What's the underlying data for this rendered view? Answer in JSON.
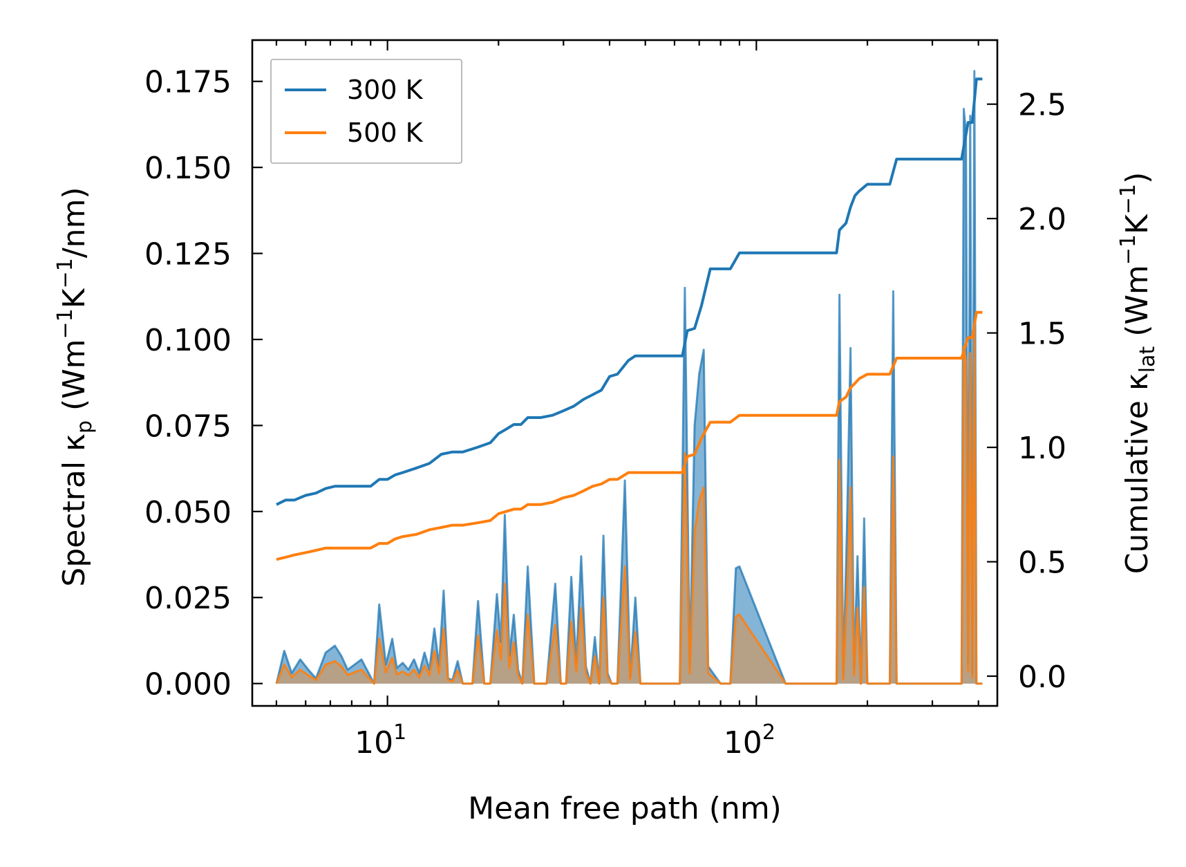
{
  "chart_data": {
    "type": "line",
    "title": "",
    "xlabel": "Mean free path (nm)",
    "ylabel_left": {
      "prefix": "Spectral κ",
      "sub": "p",
      "unit_open": " (Wm",
      "exp1": "−1",
      "mid": "K",
      "exp2": "−1",
      "unit_close": "/nm)"
    },
    "ylabel_right": {
      "prefix": "Cumulative κ",
      "sub": "lat",
      "unit_open": " (Wm",
      "exp1": "−1",
      "mid": "K",
      "exp2": "−1",
      "unit_close": ")"
    },
    "xscale": "log",
    "xlim": [
      4.3,
      450
    ],
    "ylim_left": [
      -0.0065,
      0.187
    ],
    "ylim_right": [
      -0.13,
      2.78
    ],
    "x_ticks": [
      {
        "value": 10,
        "base": "10",
        "exp": "1"
      },
      {
        "value": 100,
        "base": "10",
        "exp": "2"
      }
    ],
    "y_ticks_left": [
      "0.000",
      "0.025",
      "0.050",
      "0.075",
      "0.100",
      "0.125",
      "0.150",
      "0.175"
    ],
    "y_ticks_right": [
      "0.0",
      "0.5",
      "1.0",
      "1.5",
      "2.0",
      "2.5"
    ],
    "legend": {
      "position": "top-left",
      "entries": [
        "300 K",
        "500 K"
      ]
    },
    "colors": {
      "300K": "#1f77b4",
      "500K": "#ff7f0e",
      "fill300": "#1f77b4",
      "fill500": "#c79a6b"
    },
    "series": [
      {
        "name": "300 K",
        "axis": "right",
        "kind": "cumulative",
        "x": [
          5,
          5.3,
          5.6,
          6,
          6.4,
          6.8,
          7.2,
          7.6,
          8.2,
          9,
          9.5,
          10,
          10.5,
          11,
          12,
          13,
          14,
          15,
          16,
          17.5,
          19,
          20,
          21,
          22,
          23,
          24,
          26,
          28,
          30,
          32,
          34,
          36,
          38,
          40,
          42,
          45,
          47,
          50,
          55,
          60,
          63,
          65,
          68,
          71,
          75,
          80,
          85,
          90,
          120,
          165,
          168,
          175,
          180,
          185,
          190,
          200,
          230,
          240,
          300,
          360,
          375,
          385,
          395,
          410
        ],
        "values": [
          0.75,
          0.77,
          0.77,
          0.79,
          0.8,
          0.82,
          0.83,
          0.83,
          0.83,
          0.83,
          0.86,
          0.86,
          0.88,
          0.89,
          0.91,
          0.93,
          0.97,
          0.98,
          0.98,
          1.0,
          1.02,
          1.06,
          1.08,
          1.1,
          1.1,
          1.13,
          1.13,
          1.14,
          1.16,
          1.18,
          1.21,
          1.23,
          1.25,
          1.31,
          1.32,
          1.38,
          1.4,
          1.4,
          1.4,
          1.4,
          1.4,
          1.51,
          1.52,
          1.62,
          1.78,
          1.78,
          1.78,
          1.85,
          1.85,
          1.85,
          1.95,
          1.98,
          2.05,
          2.1,
          2.12,
          2.15,
          2.15,
          2.26,
          2.26,
          2.26,
          2.42,
          2.42,
          2.61,
          2.61
        ]
      },
      {
        "name": "500 K",
        "axis": "right",
        "kind": "cumulative",
        "x": [
          5,
          5.3,
          5.6,
          6,
          6.4,
          6.8,
          7.2,
          7.6,
          8.2,
          9,
          9.5,
          10,
          10.5,
          11,
          12,
          13,
          14,
          15,
          16,
          17.5,
          19,
          20,
          21,
          22,
          23,
          24,
          26,
          28,
          30,
          32,
          34,
          36,
          38,
          40,
          42,
          45,
          47,
          50,
          55,
          60,
          63,
          65,
          68,
          71,
          75,
          80,
          85,
          90,
          120,
          165,
          168,
          175,
          180,
          185,
          190,
          200,
          230,
          240,
          300,
          360,
          375,
          385,
          395,
          410
        ],
        "values": [
          0.51,
          0.52,
          0.53,
          0.54,
          0.55,
          0.56,
          0.56,
          0.56,
          0.56,
          0.56,
          0.58,
          0.58,
          0.6,
          0.61,
          0.62,
          0.64,
          0.65,
          0.66,
          0.66,
          0.67,
          0.68,
          0.71,
          0.72,
          0.73,
          0.73,
          0.75,
          0.75,
          0.76,
          0.78,
          0.79,
          0.81,
          0.83,
          0.84,
          0.86,
          0.86,
          0.89,
          0.89,
          0.89,
          0.89,
          0.89,
          0.89,
          0.96,
          0.97,
          1.04,
          1.11,
          1.11,
          1.11,
          1.14,
          1.14,
          1.14,
          1.2,
          1.22,
          1.26,
          1.28,
          1.3,
          1.32,
          1.32,
          1.39,
          1.39,
          1.39,
          1.48,
          1.48,
          1.59,
          1.59
        ]
      },
      {
        "name": "300 K",
        "axis": "left",
        "kind": "spectral",
        "x": [
          5,
          5.25,
          5.5,
          5.8,
          6.1,
          6.4,
          6.8,
          7.2,
          7.5,
          7.8,
          8.5,
          9.2,
          9.5,
          9.9,
          10.3,
          10.6,
          11,
          11.4,
          11.8,
          12.2,
          12.6,
          13,
          13.4,
          13.8,
          14.2,
          14.6,
          15,
          15.5,
          16,
          17,
          17.6,
          18.3,
          19,
          19.8,
          20.3,
          20.8,
          21.4,
          22,
          22.6,
          23.2,
          24,
          25,
          27,
          28.5,
          29.5,
          30.5,
          31.5,
          32.5,
          33.5,
          34.5,
          35.5,
          36.5,
          37.5,
          38.5,
          39.5,
          40.5,
          42,
          44,
          45.5,
          47,
          48.5,
          50,
          55,
          62,
          64,
          66,
          68,
          70,
          72,
          74,
          80,
          83,
          85,
          88,
          90,
          120,
          160,
          165,
          168,
          172,
          176,
          180,
          184,
          188,
          192,
          196,
          200,
          225,
          230,
          235,
          240,
          300,
          350,
          360,
          365,
          370,
          375,
          380,
          385,
          390,
          395,
          400,
          410
        ],
        "values": [
          0,
          0.0095,
          0.003,
          0.007,
          0.004,
          0.0015,
          0.009,
          0.011,
          0.008,
          0.004,
          0.007,
          0.0,
          0.023,
          0.0055,
          0.013,
          0.0045,
          0.006,
          0.004,
          0.007,
          0.003,
          0.009,
          0.004,
          0.016,
          0.005,
          0.027,
          0.0015,
          0.001,
          0.0065,
          0.0,
          0.0,
          0.024,
          0.0,
          0.0,
          0.026,
          0.012,
          0.049,
          0.008,
          0.02,
          0.004,
          0.0,
          0.034,
          0.0,
          0.0,
          0.029,
          0.0,
          0.0,
          0.031,
          0.006,
          0.037,
          0.005,
          0.0,
          0.0135,
          0.0,
          0.043,
          0.003,
          0.0,
          0.0,
          0.059,
          0.002,
          0.025,
          0.0,
          0.0,
          0.0,
          0.0,
          0.115,
          0.005,
          0.075,
          0.09,
          0.097,
          0.005,
          0.0,
          0.0,
          0.0,
          0.0335,
          0.034,
          0.0,
          0.0,
          0.0,
          0.113,
          0.002,
          0.045,
          0.0975,
          0.004,
          0.037,
          0.0,
          0.048,
          0.0,
          0.0,
          0.0,
          0.114,
          0.0,
          0.0,
          0.0,
          0.0,
          0.167,
          0.16,
          0.006,
          0.165,
          0.003,
          0.178,
          0.0,
          0.0,
          0.0
        ]
      },
      {
        "name": "500 K",
        "axis": "left",
        "kind": "spectral",
        "x": [
          5,
          5.25,
          5.5,
          5.8,
          6.1,
          6.4,
          6.8,
          7.2,
          7.5,
          7.8,
          8.5,
          9.2,
          9.5,
          9.9,
          10.3,
          10.6,
          11,
          11.4,
          11.8,
          12.2,
          12.6,
          13,
          13.4,
          13.8,
          14.2,
          14.6,
          15,
          15.5,
          16,
          17,
          17.6,
          18.3,
          19,
          19.8,
          20.3,
          20.8,
          21.4,
          22,
          22.6,
          23.2,
          24,
          25,
          27,
          28.5,
          29.5,
          30.5,
          31.5,
          32.5,
          33.5,
          34.5,
          35.5,
          36.5,
          37.5,
          38.5,
          39.5,
          40.5,
          42,
          44,
          45.5,
          47,
          48.5,
          50,
          55,
          62,
          64,
          66,
          68,
          70,
          72,
          74,
          80,
          83,
          85,
          88,
          90,
          120,
          160,
          165,
          168,
          172,
          176,
          180,
          184,
          188,
          192,
          196,
          200,
          225,
          230,
          235,
          240,
          300,
          350,
          360,
          365,
          370,
          375,
          380,
          385,
          390,
          395,
          400,
          410
        ],
        "values": [
          0,
          0.0055,
          0.0018,
          0.004,
          0.0024,
          0.001,
          0.0055,
          0.0065,
          0.005,
          0.0025,
          0.004,
          0.0,
          0.013,
          0.0032,
          0.0075,
          0.0026,
          0.0035,
          0.0024,
          0.004,
          0.0018,
          0.0052,
          0.0024,
          0.0095,
          0.003,
          0.016,
          0.001,
          0.0006,
          0.0038,
          0.0,
          0.0,
          0.014,
          0.0,
          0.0,
          0.0155,
          0.007,
          0.029,
          0.0045,
          0.012,
          0.0024,
          0.0,
          0.02,
          0.0,
          0.0,
          0.017,
          0.0,
          0.0,
          0.018,
          0.0035,
          0.022,
          0.003,
          0.0,
          0.008,
          0.0,
          0.025,
          0.0018,
          0.0,
          0.0,
          0.034,
          0.0012,
          0.015,
          0.0,
          0.0,
          0.0,
          0.0,
          0.067,
          0.003,
          0.044,
          0.053,
          0.057,
          0.003,
          0.0,
          0.0,
          0.0,
          0.0195,
          0.02,
          0.0,
          0.0,
          0.0,
          0.065,
          0.0012,
          0.026,
          0.057,
          0.0024,
          0.022,
          0.0,
          0.028,
          0.0,
          0.0,
          0.0,
          0.066,
          0.0,
          0.0,
          0.0,
          0.0,
          0.098,
          0.094,
          0.0035,
          0.096,
          0.0018,
          0.104,
          0.0,
          0.0,
          0.0
        ]
      }
    ]
  }
}
